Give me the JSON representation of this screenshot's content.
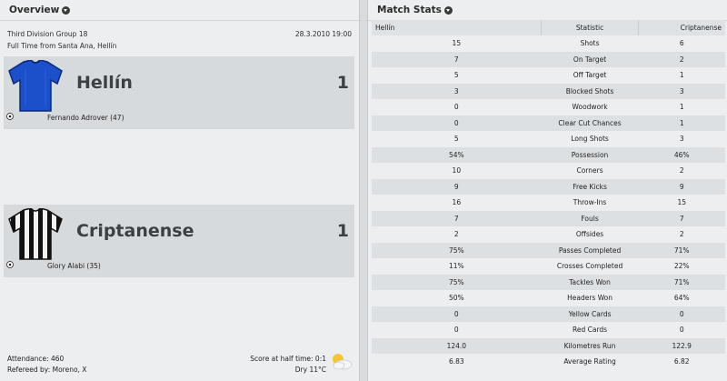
{
  "overview": {
    "title": "Overview",
    "competition": "Third Division Group 18",
    "date": "28.3.2010 19:00",
    "venue_line": "Full Time from Santa Ana, Hellín",
    "home": {
      "name": "Hellín",
      "score": "1",
      "scorer": "Fernando Adrover (47)",
      "shirt_color": "#1a4fc7"
    },
    "away": {
      "name": "Criptanense",
      "score": "1",
      "scorer": "Glory Alabi (35)",
      "shirt_color": "#111111"
    },
    "attendance": "Attendance: 460",
    "referee": "Refereed by: Moreno, X",
    "half_time": "Score at half time: 0:1",
    "weather": "Dry 11°C",
    "weather_icon": "sun-cloud-icon"
  },
  "stats": {
    "title": "Match Stats",
    "headers": {
      "home": "Hellín",
      "stat": "Statistic",
      "away": "Criptanense"
    },
    "rows": [
      {
        "home": "15",
        "stat": "Shots",
        "away": "6"
      },
      {
        "home": "7",
        "stat": "On Target",
        "away": "2"
      },
      {
        "home": "5",
        "stat": "Off Target",
        "away": "1"
      },
      {
        "home": "3",
        "stat": "Blocked Shots",
        "away": "3"
      },
      {
        "home": "0",
        "stat": "Woodwork",
        "away": "1"
      },
      {
        "home": "0",
        "stat": "Clear Cut Chances",
        "away": "1"
      },
      {
        "home": "5",
        "stat": "Long Shots",
        "away": "3"
      },
      {
        "home": "54%",
        "stat": "Possession",
        "away": "46%"
      },
      {
        "home": "10",
        "stat": "Corners",
        "away": "2"
      },
      {
        "home": "9",
        "stat": "Free Kicks",
        "away": "9"
      },
      {
        "home": "16",
        "stat": "Throw-Ins",
        "away": "15"
      },
      {
        "home": "7",
        "stat": "Fouls",
        "away": "7"
      },
      {
        "home": "2",
        "stat": "Offsides",
        "away": "2"
      },
      {
        "home": "75%",
        "stat": "Passes Completed",
        "away": "71%"
      },
      {
        "home": "11%",
        "stat": "Crosses Completed",
        "away": "22%"
      },
      {
        "home": "75%",
        "stat": "Tackles Won",
        "away": "71%"
      },
      {
        "home": "50%",
        "stat": "Headers Won",
        "away": "64%"
      },
      {
        "home": "0",
        "stat": "Yellow Cards",
        "away": "0"
      },
      {
        "home": "0",
        "stat": "Red Cards",
        "away": "0"
      },
      {
        "home": "124.0",
        "stat": "Kilometres Run",
        "away": "122.9"
      },
      {
        "home": "6.83",
        "stat": "Average Rating",
        "away": "6.82"
      }
    ]
  }
}
